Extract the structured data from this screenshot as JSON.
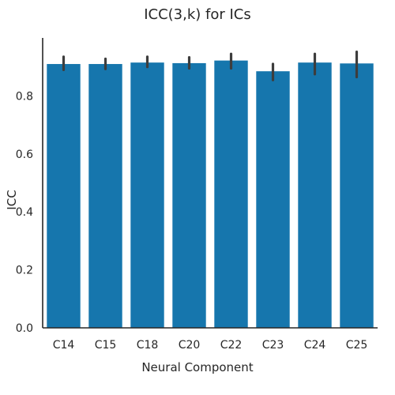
{
  "chart_data": {
    "type": "bar",
    "title": "ICC(3,k) for ICs",
    "xlabel": "Neural Component",
    "ylabel": "ICC",
    "categories": [
      "C14",
      "C15",
      "C18",
      "C20",
      "C22",
      "C23",
      "C24",
      "C25"
    ],
    "values": [
      0.91,
      0.91,
      0.915,
      0.913,
      0.922,
      0.885,
      0.915,
      0.912
    ],
    "error_low": [
      0.89,
      0.893,
      0.9,
      0.895,
      0.895,
      0.855,
      0.875,
      0.865
    ],
    "error_high": [
      0.935,
      0.928,
      0.935,
      0.933,
      0.945,
      0.91,
      0.945,
      0.952
    ],
    "ylim": [
      0,
      1.0
    ],
    "yticks": [
      0.0,
      0.2,
      0.4,
      0.6,
      0.8
    ],
    "ytick_labels": [
      "0.0",
      "0.2",
      "0.4",
      "0.6",
      "0.8"
    ],
    "grid": false,
    "bar_color": "#1676ad",
    "error_color": "#3d3d3d"
  }
}
